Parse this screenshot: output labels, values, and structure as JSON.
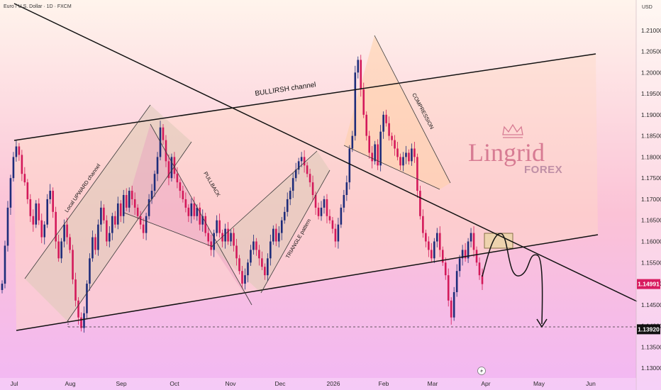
{
  "header": {
    "symbol_title": "Euro / U.S. Dollar · 1D · FXCM",
    "currency": "USD"
  },
  "logo": {
    "brand": "Lingrid",
    "sub": "FOREX"
  },
  "chart_data": {
    "type": "candlestick",
    "title": "Euro / U.S. Dollar · 1D · FXCM",
    "y_unit": "USD",
    "ylim": [
      1.1265,
      1.2155
    ],
    "y_ticks": [
      "1.21000",
      "1.20500",
      "1.20000",
      "1.19500",
      "1.19000",
      "1.18500",
      "1.18000",
      "1.17500",
      "1.17000",
      "1.16500",
      "1.16000",
      "1.15500",
      "1.15000",
      "1.14500",
      "1.14000",
      "1.13500",
      "1.13000"
    ],
    "x_ticks": [
      "Jul",
      "Aug",
      "Sep",
      "Oct",
      "Nov",
      "Dec",
      "2026",
      "Feb",
      "Mar",
      "Apr",
      "May",
      "Jun"
    ],
    "price_labels": [
      {
        "value": 1.14991,
        "text": "1.14991",
        "color": "#d81b60"
      },
      {
        "value": 1.1392,
        "text": "1.13920",
        "color": "#111111"
      }
    ],
    "annotations": [
      {
        "text": "BULLIRSH channel"
      },
      {
        "text": "Local UPWARD channel"
      },
      {
        "text": "PULLBACK"
      },
      {
        "text": "TRIANGLE pattern"
      },
      {
        "text": "COMPRESSION"
      }
    ],
    "series": [
      {
        "values": [
          1.15,
          1.159,
          1.168,
          1.175,
          1.18,
          1.1825,
          1.1805,
          1.176,
          1.174,
          1.17,
          1.166,
          1.164,
          1.169,
          1.165,
          1.161,
          1.164,
          1.17,
          1.172,
          1.167,
          1.16,
          1.156,
          1.16,
          1.164,
          1.161,
          1.158,
          1.151,
          1.146,
          1.142,
          1.1395,
          1.143,
          1.15,
          1.156,
          1.161,
          1.158,
          1.164,
          1.168,
          1.165,
          1.16,
          1.162,
          1.166,
          1.164,
          1.169,
          1.166,
          1.171,
          1.168,
          1.172,
          1.17,
          1.168,
          1.166,
          1.164,
          1.162,
          1.166,
          1.17,
          1.172,
          1.176,
          1.18,
          1.187,
          1.184,
          1.179,
          1.175,
          1.18,
          1.176,
          1.174,
          1.172,
          1.17,
          1.168,
          1.166,
          1.169,
          1.166,
          1.168,
          1.164,
          1.166,
          1.162,
          1.16,
          1.158,
          1.162,
          1.165,
          1.162,
          1.16,
          1.163,
          1.16,
          1.162,
          1.159,
          1.156,
          1.153,
          1.15,
          1.152,
          1.155,
          1.158,
          1.16,
          1.158,
          1.156,
          1.154,
          1.152,
          1.156,
          1.16,
          1.163,
          1.16,
          1.162,
          1.165,
          1.167,
          1.17,
          1.172,
          1.175,
          1.177,
          1.179,
          1.18,
          1.178,
          1.176,
          1.174,
          1.171,
          1.168,
          1.166,
          1.168,
          1.17,
          1.166,
          1.165,
          1.163,
          1.16,
          1.164,
          1.168,
          1.171,
          1.174,
          1.182,
          1.185,
          1.2,
          1.203,
          1.196,
          1.19,
          1.185,
          1.181,
          1.179,
          1.183,
          1.178,
          1.186,
          1.19,
          1.188,
          1.185,
          1.184,
          1.182,
          1.18,
          1.178,
          1.18,
          1.181,
          1.179,
          1.182,
          1.18,
          1.172,
          1.166,
          1.162,
          1.16,
          1.158,
          1.156,
          1.16,
          1.162,
          1.158,
          1.155,
          1.152,
          1.146,
          1.142,
          1.148,
          1.153,
          1.156,
          1.158,
          1.156,
          1.16,
          1.162,
          1.158,
          1.155,
          1.152,
          1.1499
        ]
      }
    ]
  }
}
